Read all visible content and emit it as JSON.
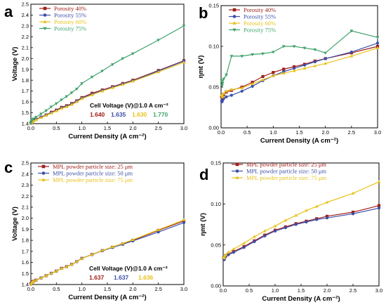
{
  "panels": [
    {
      "id": "a",
      "label": "a",
      "chart_data": {
        "type": "line",
        "xlabel": "Current Density (A cm⁻²)",
        "ylabel": "Voltage (V)",
        "xlim": [
          0,
          3.0
        ],
        "ylim": [
          1.4,
          2.5
        ],
        "xticks": [
          "0.0",
          "0.5",
          "1.0",
          "1.5",
          "2.0",
          "2.5",
          "3.0"
        ],
        "yticks": [
          "1.4",
          "1.5",
          "1.6",
          "1.7",
          "1.8",
          "1.9",
          "2.0",
          "2.1",
          "2.2",
          "2.3",
          "2.4",
          "2.5"
        ],
        "legend_position": "top-left",
        "annotation": {
          "title": "Cell Voltage (V)@1.0 A cm⁻²",
          "values": [
            "1.640",
            "1.635",
            "1.630",
            "1.770"
          ]
        },
        "series": [
          {
            "name": "Porosity 40%",
            "color": "#a0201c",
            "marker": "square",
            "x": [
              0,
              0.01,
              0.02,
              0.03,
              0.05,
              0.1,
              0.2,
              0.3,
              0.4,
              0.5,
              0.6,
              0.7,
              0.8,
              0.9,
              1.0,
              1.2,
              1.4,
              1.6,
              1.8,
              2.0,
              2.5,
              3.0
            ],
            "y": [
              1.405,
              1.415,
              1.42,
              1.425,
              1.43,
              1.44,
              1.46,
              1.48,
              1.505,
              1.525,
              1.55,
              1.565,
              1.585,
              1.61,
              1.64,
              1.68,
              1.71,
              1.74,
              1.77,
              1.8,
              1.89,
              1.98
            ]
          },
          {
            "name": "Porosity 55%",
            "color": "#3b4fa8",
            "marker": "circle",
            "x": [
              0,
              0.01,
              0.02,
              0.03,
              0.05,
              0.1,
              0.2,
              0.3,
              0.4,
              0.5,
              0.6,
              0.7,
              0.8,
              0.9,
              1.0,
              1.2,
              1.4,
              1.6,
              1.8,
              2.0,
              2.5,
              3.0
            ],
            "y": [
              1.405,
              1.412,
              1.418,
              1.423,
              1.428,
              1.438,
              1.458,
              1.478,
              1.5,
              1.52,
              1.545,
              1.56,
              1.58,
              1.605,
              1.635,
              1.67,
              1.705,
              1.735,
              1.765,
              1.795,
              1.885,
              1.975
            ]
          },
          {
            "name": "Porosity 60%",
            "color": "#e8c21a",
            "marker": "triangle-up",
            "x": [
              0,
              0.01,
              0.02,
              0.03,
              0.05,
              0.1,
              0.2,
              0.3,
              0.4,
              0.5,
              0.6,
              0.7,
              0.8,
              0.9,
              1.0,
              1.2,
              1.4,
              1.6,
              1.8,
              2.0,
              2.5,
              3.0
            ],
            "y": [
              1.405,
              1.41,
              1.416,
              1.42,
              1.425,
              1.435,
              1.455,
              1.475,
              1.497,
              1.517,
              1.54,
              1.555,
              1.575,
              1.6,
              1.63,
              1.665,
              1.7,
              1.73,
              1.76,
              1.79,
              1.875,
              1.965
            ]
          },
          {
            "name": "Porosity 75%",
            "color": "#3fa36b",
            "marker": "triangle-down",
            "x": [
              0,
              0.01,
              0.02,
              0.03,
              0.05,
              0.1,
              0.2,
              0.3,
              0.4,
              0.5,
              0.6,
              0.7,
              0.8,
              0.9,
              1.0,
              1.2,
              1.4,
              1.6,
              1.8,
              2.0,
              2.5,
              3.0
            ],
            "y": [
              1.405,
              1.42,
              1.43,
              1.437,
              1.445,
              1.46,
              1.49,
              1.52,
              1.555,
              1.585,
              1.62,
              1.65,
              1.685,
              1.72,
              1.77,
              1.83,
              1.885,
              1.945,
              2.0,
              2.045,
              2.17,
              2.3
            ]
          }
        ]
      }
    },
    {
      "id": "b",
      "label": "b",
      "chart_data": {
        "type": "line",
        "xlabel": "Current Density (A cm⁻²)",
        "ylabel": "ηmt (V)",
        "xlim": [
          0,
          3.0
        ],
        "ylim": [
          0,
          0.15
        ],
        "xticks": [
          "0.0",
          "0.5",
          "1.0",
          "1.5",
          "2.0",
          "2.5",
          "3.0"
        ],
        "yticks": [
          "0.00",
          "0.05",
          "0.10",
          "0.15"
        ],
        "legend_position": "top-left",
        "series": [
          {
            "name": "Porosity 40%",
            "color": "#a0201c",
            "marker": "square",
            "x": [
              0.01,
              0.02,
              0.03,
              0.05,
              0.1,
              0.2,
              0.4,
              0.6,
              0.8,
              1.0,
              1.2,
              1.4,
              1.6,
              1.8,
              2.0,
              2.5,
              3.0
            ],
            "y": [
              0.038,
              0.036,
              0.038,
              0.041,
              0.044,
              0.046,
              0.05,
              0.056,
              0.063,
              0.068,
              0.072,
              0.075,
              0.078,
              0.082,
              0.085,
              0.092,
              0.1
            ]
          },
          {
            "name": "Porosity 55%",
            "color": "#3b4fa8",
            "marker": "circle",
            "x": [
              0.01,
              0.02,
              0.03,
              0.05,
              0.1,
              0.2,
              0.4,
              0.6,
              0.8,
              1.0,
              1.2,
              1.4,
              1.6,
              1.8,
              2.0,
              2.5,
              3.0
            ],
            "y": [
              0.033,
              0.032,
              0.034,
              0.036,
              0.038,
              0.04,
              0.045,
              0.051,
              0.058,
              0.064,
              0.069,
              0.073,
              0.077,
              0.081,
              0.085,
              0.093,
              0.104
            ]
          },
          {
            "name": "Porosity 60%",
            "color": "#e8c21a",
            "marker": "triangle-up",
            "x": [
              0.01,
              0.02,
              0.03,
              0.05,
              0.1,
              0.2,
              0.4,
              0.6,
              0.8,
              1.0,
              1.2,
              1.4,
              1.6,
              1.8,
              2.0,
              2.5,
              3.0
            ],
            "y": [
              0.04,
              0.038,
              0.039,
              0.042,
              0.045,
              0.047,
              0.049,
              0.054,
              0.059,
              0.064,
              0.067,
              0.07,
              0.073,
              0.076,
              0.079,
              0.088,
              0.098
            ]
          },
          {
            "name": "Porosity 75%",
            "color": "#3fa36b",
            "marker": "triangle-down",
            "x": [
              0.01,
              0.02,
              0.03,
              0.05,
              0.1,
              0.2,
              0.4,
              0.6,
              0.8,
              1.0,
              1.2,
              1.4,
              1.6,
              1.8,
              2.0,
              2.5,
              3.0
            ],
            "y": [
              0.058,
              0.052,
              0.055,
              0.06,
              0.065,
              0.088,
              0.088,
              0.09,
              0.091,
              0.093,
              0.1,
              0.1,
              0.098,
              0.096,
              0.092,
              0.119,
              0.111
            ]
          }
        ]
      }
    },
    {
      "id": "c",
      "label": "c",
      "chart_data": {
        "type": "line",
        "xlabel": "Current Density (A cm⁻²)",
        "ylabel": "Voltage (V)",
        "xlim": [
          0,
          3.0
        ],
        "ylim": [
          1.4,
          2.5
        ],
        "xticks": [
          "0.0",
          "0.5",
          "1.0",
          "1.5",
          "2.0",
          "2.5",
          "3.0"
        ],
        "yticks": [
          "1.4",
          "1.5",
          "1.6",
          "1.7",
          "1.8",
          "1.9",
          "2.0",
          "2.1",
          "2.2",
          "2.3",
          "2.4",
          "2.5"
        ],
        "legend_position": "top-left",
        "annotation": {
          "title": "Cell Voltage (V)@1.0 A cm⁻²",
          "values": [
            "1.637",
            "1.637",
            "1.636"
          ]
        },
        "series": [
          {
            "name": "MPL powder particle size: 25 μm",
            "color": "#a0201c",
            "marker": "square",
            "x": [
              0,
              0.01,
              0.02,
              0.03,
              0.05,
              0.1,
              0.2,
              0.3,
              0.4,
              0.5,
              0.6,
              0.7,
              0.8,
              0.9,
              1.0,
              1.2,
              1.4,
              1.6,
              1.8,
              2.0,
              2.5,
              3.0
            ],
            "y": [
              1.405,
              1.413,
              1.419,
              1.424,
              1.43,
              1.44,
              1.46,
              1.48,
              1.502,
              1.522,
              1.547,
              1.562,
              1.582,
              1.607,
              1.637,
              1.672,
              1.707,
              1.737,
              1.767,
              1.8,
              1.89,
              1.975
            ]
          },
          {
            "name": "MPL powder particle size: 50 μm",
            "color": "#3b4fa8",
            "marker": "circle",
            "x": [
              0,
              0.01,
              0.02,
              0.03,
              0.05,
              0.1,
              0.2,
              0.3,
              0.4,
              0.5,
              0.6,
              0.7,
              0.8,
              0.9,
              1.0,
              1.2,
              1.4,
              1.6,
              1.8,
              2.0,
              2.5,
              3.0
            ],
            "y": [
              1.405,
              1.412,
              1.418,
              1.423,
              1.429,
              1.439,
              1.459,
              1.479,
              1.501,
              1.521,
              1.546,
              1.561,
              1.581,
              1.606,
              1.637,
              1.671,
              1.705,
              1.735,
              1.764,
              1.795,
              1.875,
              1.96
            ]
          },
          {
            "name": "MPL powder particle size: 75 μm",
            "color": "#e8c21a",
            "marker": "triangle-up",
            "x": [
              0,
              0.01,
              0.02,
              0.03,
              0.05,
              0.1,
              0.2,
              0.3,
              0.4,
              0.5,
              0.6,
              0.7,
              0.8,
              0.9,
              1.0,
              1.2,
              1.4,
              1.6,
              1.8,
              2.0,
              2.5,
              3.0
            ],
            "y": [
              1.405,
              1.413,
              1.419,
              1.424,
              1.43,
              1.44,
              1.46,
              1.48,
              1.502,
              1.522,
              1.546,
              1.561,
              1.581,
              1.606,
              1.636,
              1.672,
              1.708,
              1.74,
              1.772,
              1.805,
              1.895,
              1.985
            ]
          }
        ]
      }
    },
    {
      "id": "d",
      "label": "d",
      "chart_data": {
        "type": "line",
        "xlabel": "Current Density (A cm⁻²)",
        "ylabel": "ηmt (V)",
        "xlim": [
          0,
          3.0
        ],
        "ylim": [
          0,
          0.15
        ],
        "xticks": [
          "0.0",
          "0.5",
          "1.0",
          "1.5",
          "2.0",
          "2.5",
          "3.0"
        ],
        "yticks": [
          "0.00",
          "0.05",
          "0.10",
          "0.15"
        ],
        "legend_position": "top-left",
        "series": [
          {
            "name": "MPL powder particle size: 25 μm",
            "color": "#a0201c",
            "marker": "square",
            "x": [
              0.01,
              0.02,
              0.03,
              0.05,
              0.1,
              0.2,
              0.4,
              0.6,
              0.8,
              1.0,
              1.2,
              1.4,
              1.6,
              1.8,
              2.0,
              2.5,
              3.0
            ],
            "y": [
              0.034,
              0.033,
              0.035,
              0.037,
              0.039,
              0.042,
              0.048,
              0.055,
              0.062,
              0.068,
              0.072,
              0.076,
              0.079,
              0.082,
              0.085,
              0.09,
              0.098
            ]
          },
          {
            "name": "MPL powder particle size: 50 μm",
            "color": "#3b4fa8",
            "marker": "circle",
            "x": [
              0.01,
              0.02,
              0.03,
              0.05,
              0.1,
              0.2,
              0.4,
              0.6,
              0.8,
              1.0,
              1.2,
              1.4,
              1.6,
              1.8,
              2.0,
              2.5,
              3.0
            ],
            "y": [
              0.033,
              0.032,
              0.034,
              0.036,
              0.038,
              0.041,
              0.047,
              0.054,
              0.061,
              0.067,
              0.071,
              0.075,
              0.078,
              0.081,
              0.083,
              0.088,
              0.095
            ]
          },
          {
            "name": "MPL powder particle size: 75 μm",
            "color": "#e8c21a",
            "marker": "triangle-up",
            "x": [
              0.01,
              0.02,
              0.03,
              0.05,
              0.1,
              0.2,
              0.4,
              0.6,
              0.8,
              1.0,
              1.2,
              1.4,
              1.6,
              1.8,
              2.0,
              2.5,
              3.0
            ],
            "y": [
              0.035,
              0.034,
              0.036,
              0.038,
              0.041,
              0.045,
              0.052,
              0.06,
              0.067,
              0.073,
              0.08,
              0.086,
              0.092,
              0.097,
              0.102,
              0.113,
              0.127
            ]
          }
        ]
      }
    }
  ]
}
